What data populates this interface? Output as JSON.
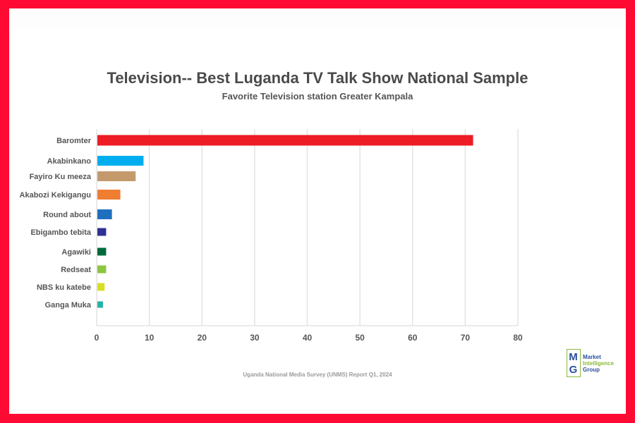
{
  "chart_data": {
    "type": "bar",
    "orientation": "horizontal",
    "title": "Television-- Best Luganda TV Talk Show National Sample",
    "subtitle": "Favorite Television station Greater Kampala",
    "categories": [
      "Baromter",
      "Akabinkano",
      "Fayiro Ku meeza",
      "Akabozi Kekigangu",
      "Round about",
      "Ebigambo tebita",
      "Agawiki",
      "Redseat",
      "NBS ku katebe",
      "Ganga Muka"
    ],
    "values": [
      71.5,
      8.9,
      7.4,
      4.5,
      2.9,
      1.8,
      1.8,
      1.8,
      1.5,
      1.2
    ],
    "colors": [
      "#ee1c25",
      "#00aeef",
      "#c49a6c",
      "#ef7d32",
      "#1f6fbf",
      "#2e3192",
      "#006b3a",
      "#8dc63f",
      "#d7df23",
      "#26b3a5"
    ],
    "xlim": [
      0,
      80
    ],
    "xticks": [
      "0",
      "10",
      "20",
      "30",
      "40",
      "50",
      "60",
      "70",
      "80"
    ],
    "xlabel": "",
    "ylabel": "",
    "grid": true,
    "legend": "none"
  },
  "footer": "Uganda National Media Survey (UNMS) Report Q1, 2024",
  "logo": {
    "letters": [
      "M",
      "G"
    ],
    "lines": [
      "Market",
      "Intelligence",
      "Group"
    ]
  },
  "theme": {
    "border": "#ff0a32",
    "grid": "#e3e3e3",
    "text": "#4a4a4a"
  }
}
